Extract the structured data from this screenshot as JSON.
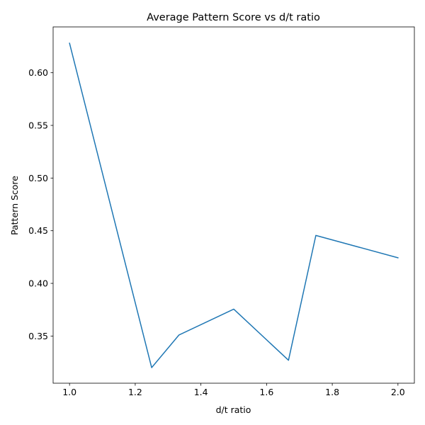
{
  "chart_data": {
    "type": "line",
    "title": "Average Pattern Score vs d/t ratio",
    "xlabel": "d/t ratio",
    "ylabel": "Pattern Score",
    "xlim": [
      0.95,
      2.05
    ],
    "ylim": [
      0.3052,
      0.6435
    ],
    "xticks": [
      1.0,
      1.2,
      1.4,
      1.6,
      1.8,
      2.0
    ],
    "xtick_labels": [
      "1.0",
      "1.2",
      "1.4",
      "1.6",
      "1.8",
      "2.0"
    ],
    "yticks": [
      0.35,
      0.4,
      0.45,
      0.5,
      0.55,
      0.6
    ],
    "ytick_labels": [
      "0.35",
      "0.40",
      "0.45",
      "0.50",
      "0.55",
      "0.60"
    ],
    "grid": false,
    "legend": "none",
    "series": [
      {
        "color": "#1f77b4",
        "x": [
          1.0,
          1.25,
          1.3333,
          1.5,
          1.6667,
          1.75,
          2.0
        ],
        "y": [
          0.628,
          0.32,
          0.351,
          0.3755,
          0.327,
          0.4455,
          0.4243
        ]
      }
    ]
  }
}
